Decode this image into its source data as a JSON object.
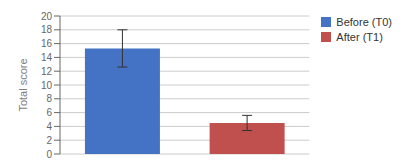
{
  "chart_data": {
    "type": "bar",
    "categories": [
      "Before (T0)",
      "After (T1)"
    ],
    "values": [
      15.3,
      4.5
    ],
    "errors": [
      2.7,
      1.1
    ],
    "colors": [
      "#4472C4",
      "#C0504D"
    ],
    "ylabel": "Total score",
    "ylim": [
      0,
      20
    ],
    "yticks": [
      0,
      2,
      4,
      6,
      8,
      10,
      12,
      14,
      16,
      18,
      20
    ],
    "grid": true,
    "legend": "upper right",
    "tick_labels": "y"
  }
}
